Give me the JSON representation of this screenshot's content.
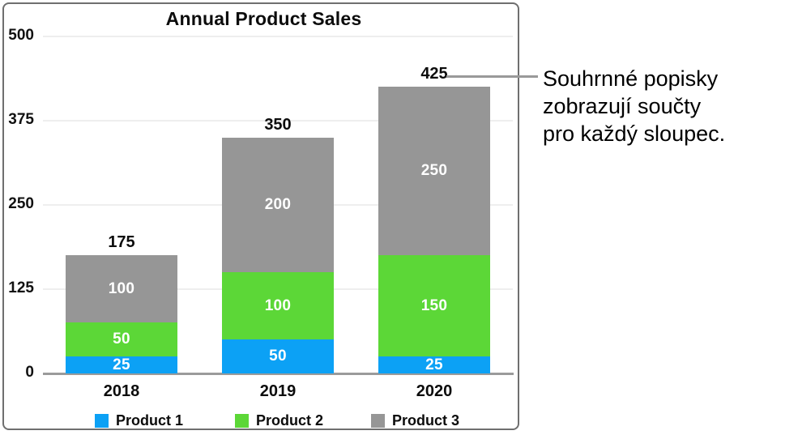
{
  "figure": {
    "callout": {
      "lines": [
        "Souhrnné popisky",
        "zobrazují součty",
        "pro každý sloupec."
      ],
      "line_color": "#999999"
    }
  },
  "chart_data": {
    "type": "bar",
    "stacked": true,
    "title": "Annual Product Sales",
    "categories": [
      "2018",
      "2019",
      "2020"
    ],
    "series": [
      {
        "name": "Product 1",
        "color": "#0ca1f5",
        "values": [
          25,
          50,
          25
        ]
      },
      {
        "name": "Product 2",
        "color": "#5cd737",
        "values": [
          50,
          100,
          150
        ]
      },
      {
        "name": "Product 3",
        "color": "#969696",
        "values": [
          100,
          200,
          250
        ]
      }
    ],
    "totals": [
      175,
      350,
      425
    ],
    "segment_labels": [
      [
        "25",
        "50",
        "100"
      ],
      [
        "50",
        "100",
        "200"
      ],
      [
        "25",
        "150",
        "250"
      ]
    ],
    "xlabel": "",
    "ylabel": "",
    "ylim": [
      0,
      500
    ],
    "y_ticks": [
      500,
      375,
      250,
      125,
      0
    ],
    "grid": true,
    "axis_color": "#9b9b9b",
    "legend_position": "bottom",
    "value_label_color": "#ffffff",
    "total_label_color": "#0c0c0c"
  }
}
